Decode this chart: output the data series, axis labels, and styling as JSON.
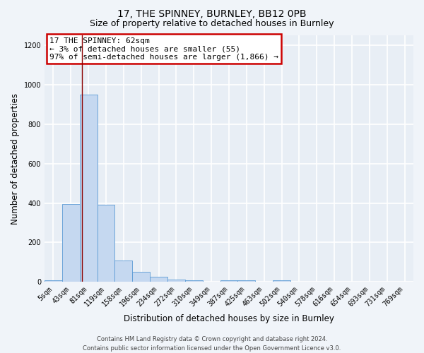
{
  "title": "17, THE SPINNEY, BURNLEY, BB12 0PB",
  "subtitle": "Size of property relative to detached houses in Burnley",
  "xlabel": "Distribution of detached houses by size in Burnley",
  "ylabel": "Number of detached properties",
  "categories": [
    "5sqm",
    "43sqm",
    "81sqm",
    "119sqm",
    "158sqm",
    "196sqm",
    "234sqm",
    "272sqm",
    "310sqm",
    "349sqm",
    "387sqm",
    "425sqm",
    "463sqm",
    "502sqm",
    "540sqm",
    "578sqm",
    "616sqm",
    "654sqm",
    "693sqm",
    "731sqm",
    "769sqm"
  ],
  "values": [
    10,
    395,
    950,
    390,
    110,
    50,
    27,
    12,
    10,
    0,
    10,
    10,
    0,
    10,
    0,
    0,
    0,
    0,
    0,
    0,
    0
  ],
  "bar_color": "#c5d8f0",
  "bar_edge_color": "#5b9bd5",
  "red_line_x": 1.62,
  "annotation_title": "17 THE SPINNEY: 62sqm",
  "annotation_line1": "← 3% of detached houses are smaller (55)",
  "annotation_line2": "97% of semi-detached houses are larger (1,866) →",
  "annotation_box_color": "#ffffff",
  "annotation_box_edge": "#cc0000",
  "ylim": [
    0,
    1250
  ],
  "yticks": [
    0,
    200,
    400,
    600,
    800,
    1000,
    1200
  ],
  "footer_line1": "Contains HM Land Registry data © Crown copyright and database right 2024.",
  "footer_line2": "Contains public sector information licensed under the Open Government Licence v3.0.",
  "background_color": "#f0f4f9",
  "plot_background": "#e8eef5",
  "grid_color": "#ffffff",
  "title_fontsize": 10,
  "subtitle_fontsize": 9,
  "axis_label_fontsize": 8.5,
  "tick_fontsize": 7,
  "footer_fontsize": 6,
  "annotation_fontsize": 8
}
